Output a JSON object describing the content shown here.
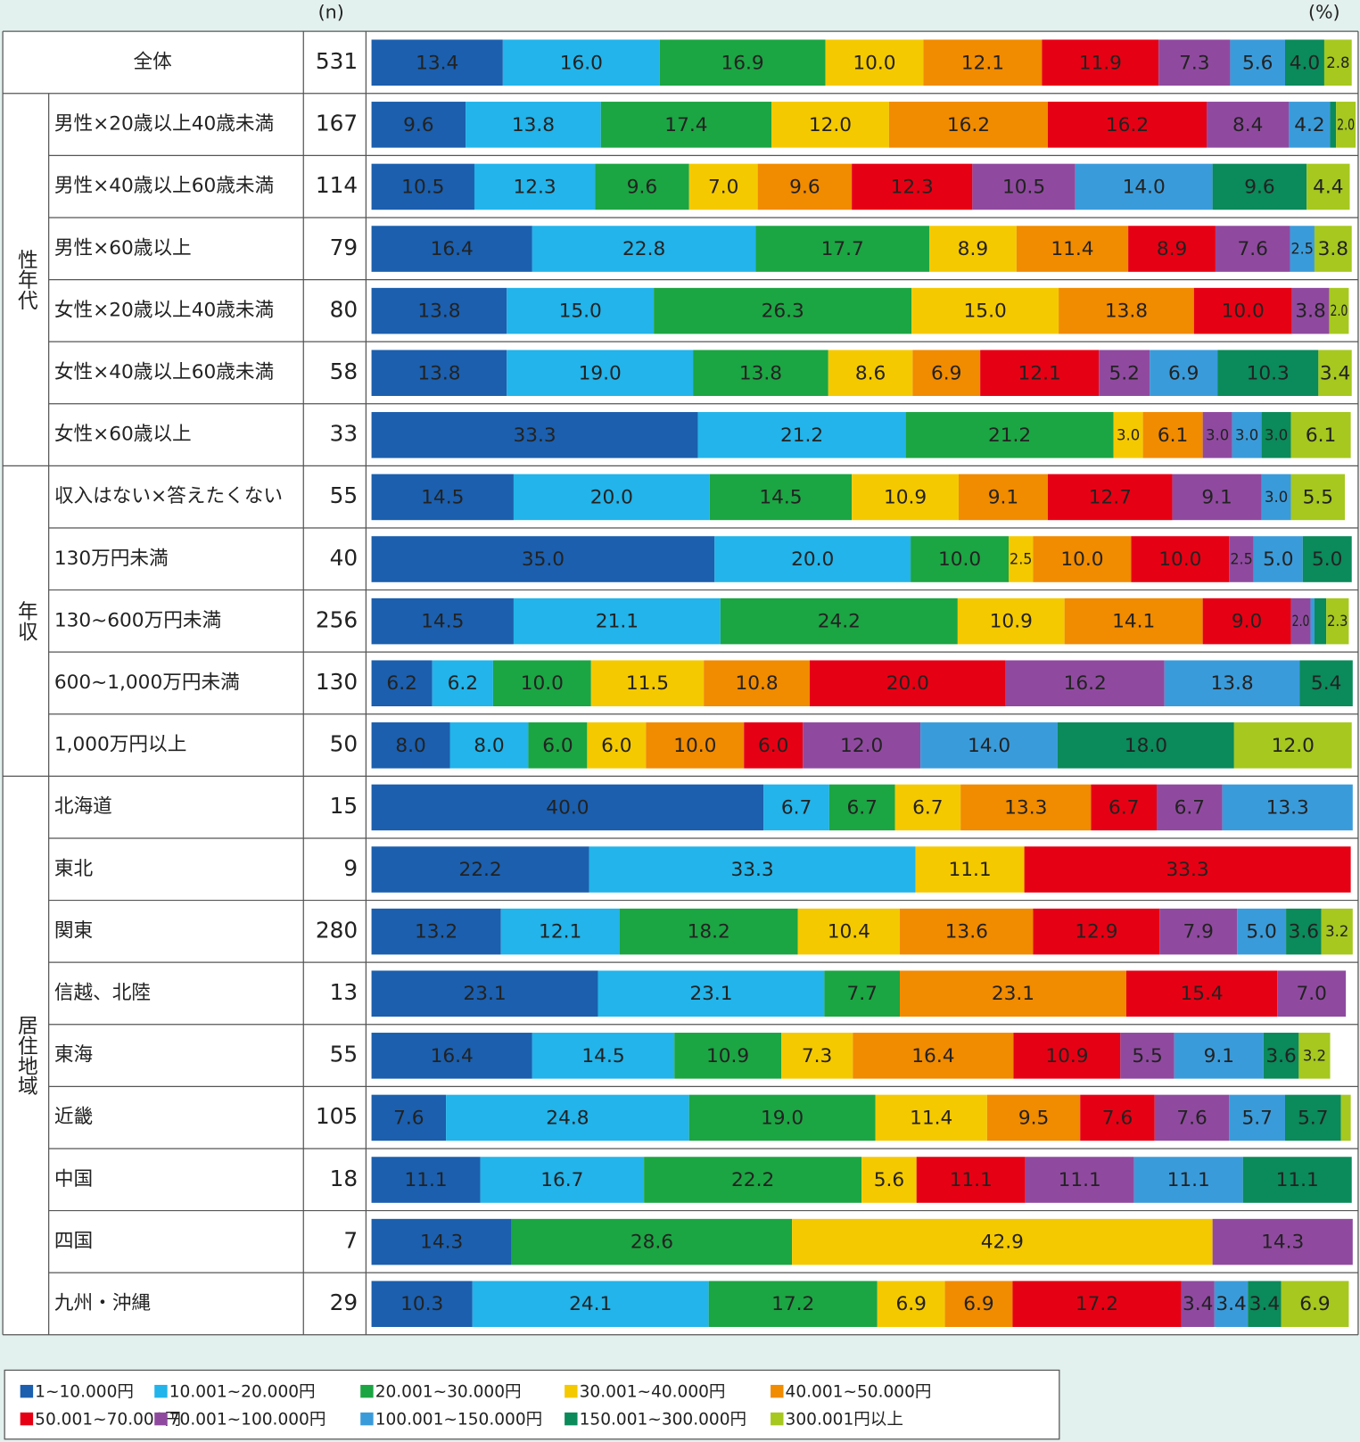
{
  "chart_data": {
    "type": "bar",
    "stacked": true,
    "orientation": "horizontal",
    "n_label": "(n)",
    "unit_label": "(%)",
    "xlim": [
      0,
      100
    ],
    "categories": [
      "全体",
      "男性×20歳以上40歳未満",
      "男性×40歳以上60歳未満",
      "男性×60歳以上",
      "女性×20歳以上40歳未満",
      "女性×40歳以上60歳未満",
      "女性×60歳以上",
      "収入はない×答えたくない",
      "130万円未満",
      "130~600万円未満",
      "600~1,000万円未満",
      "1,000万円以上",
      "北海道",
      "東北",
      "関東",
      "信越、北陸",
      "東海",
      "近畿",
      "中国",
      "四国",
      "九州・沖縄"
    ],
    "group": [
      null,
      "性年代",
      "性年代",
      "性年代",
      "性年代",
      "性年代",
      "性年代",
      "年収",
      "年収",
      "年収",
      "年収",
      "年収",
      "居住地域",
      "居住地域",
      "居住地域",
      "居住地域",
      "居住地域",
      "居住地域",
      "居住地域",
      "居住地域",
      "居住地域"
    ],
    "n": [
      531,
      167,
      114,
      79,
      80,
      58,
      33,
      55,
      40,
      256,
      130,
      50,
      15,
      9,
      280,
      13,
      55,
      105,
      18,
      7,
      29
    ],
    "series": [
      {
        "name": "1~10.000円",
        "color": "#1b5fae",
        "label_color": "#ffffff",
        "values": [
          13.4,
          9.6,
          10.5,
          16.4,
          13.8,
          13.8,
          33.3,
          14.5,
          35.0,
          14.5,
          6.2,
          8.0,
          40.0,
          22.2,
          13.2,
          23.1,
          16.4,
          7.6,
          11.1,
          14.3,
          10.3
        ],
        "value_labels": [
          "13.4",
          "9.6",
          "10.5",
          "16.4",
          "13.8",
          "13.8",
          "33.3",
          "14.5",
          "35.0",
          "14.5",
          "6.2",
          "8.0",
          "40.0",
          "22.2",
          "13.2",
          "23.1",
          "16.4",
          "7.6",
          "11.1",
          "14.3",
          "10.3"
        ]
      },
      {
        "name": "10.001~20.000円",
        "color": "#22b4ea",
        "label_color": "#ffffff",
        "values": [
          16.0,
          13.8,
          12.3,
          22.8,
          15.0,
          19.0,
          21.2,
          20.0,
          20.0,
          21.1,
          6.2,
          8.0,
          6.7,
          33.3,
          12.1,
          23.1,
          14.5,
          24.8,
          16.7,
          0,
          24.1
        ],
        "value_labels": [
          "16.0",
          "13.8",
          "12.3",
          "22.8",
          "15.0",
          "19.0",
          "21.2",
          "20.0",
          "20.0",
          "21.1",
          "6.2",
          "8.0",
          "6.7",
          "33.3",
          "12.1",
          "23.1",
          "14.5",
          "24.8",
          "16.7",
          null,
          "24.1"
        ]
      },
      {
        "name": "20.001~30.000円",
        "color": "#1ca543",
        "label_color": "#ffffff",
        "values": [
          16.9,
          17.4,
          9.6,
          17.7,
          26.3,
          13.8,
          21.2,
          14.5,
          10.0,
          24.2,
          10.0,
          6.0,
          6.7,
          0,
          18.2,
          7.7,
          10.9,
          19.0,
          22.2,
          28.6,
          17.2
        ],
        "value_labels": [
          "16.9",
          "17.4",
          "9.6",
          "17.7",
          "26.3",
          "13.8",
          "21.2",
          "14.5",
          "10.0",
          "24.2",
          "10.0",
          "6.0",
          "6.7",
          null,
          "18.2",
          "7.7",
          "10.9",
          "19.0",
          "22.2",
          "28.6",
          "17.2"
        ]
      },
      {
        "name": "30.001~40.000円",
        "color": "#f5c900",
        "label_color": "#222222",
        "values": [
          10.0,
          12.0,
          7.0,
          8.9,
          15.0,
          8.6,
          3.0,
          10.9,
          2.5,
          10.9,
          11.5,
          6.0,
          6.7,
          11.1,
          10.4,
          0,
          7.3,
          11.4,
          5.6,
          42.9,
          6.9
        ],
        "value_labels": [
          "10.0",
          "12.0",
          "7.0",
          "8.9",
          "15.0",
          "8.6",
          "3.0",
          "10.9",
          "2.5",
          "10.9",
          "11.5",
          "6.0",
          "6.7",
          "11.1",
          "10.4",
          null,
          "7.3",
          "11.4",
          "5.6",
          "42.9",
          "6.9"
        ]
      },
      {
        "name": "40.001~50.000円",
        "color": "#f18b00",
        "label_color": "#ffffff",
        "values": [
          12.1,
          16.2,
          9.6,
          11.4,
          13.8,
          6.9,
          6.1,
          9.1,
          10.0,
          14.1,
          10.8,
          10.0,
          13.3,
          0,
          13.6,
          23.1,
          16.4,
          9.5,
          0,
          0,
          6.9
        ],
        "value_labels": [
          "12.1",
          "16.2",
          "9.6",
          "11.4",
          "13.8",
          "6.9",
          "6.1",
          "9.1",
          "10.0",
          "14.1",
          "10.8",
          "10.0",
          "13.3",
          null,
          "13.6",
          "23.1",
          "16.4",
          "9.5",
          null,
          null,
          "6.9"
        ]
      },
      {
        "name": "50.001~70.000円",
        "color": "#e60013",
        "label_color": "#ffffff",
        "values": [
          11.9,
          16.2,
          12.3,
          8.9,
          10.0,
          12.1,
          0,
          12.7,
          10.0,
          9.0,
          20.0,
          6.0,
          6.7,
          33.3,
          12.9,
          15.4,
          10.9,
          7.6,
          11.1,
          0,
          17.2
        ],
        "value_labels": [
          "11.9",
          "16.2",
          "12.3",
          "8.9",
          "10.0",
          "12.1",
          null,
          "12.7",
          "10.0",
          "9.0",
          "20.0",
          "6.0",
          "6.7",
          "33.3",
          "12.9",
          "15.4",
          "10.9",
          "7.6",
          "11.1",
          null,
          "17.2"
        ]
      },
      {
        "name": "70.001~100.000円",
        "color": "#8f4a9f",
        "label_color": "#ffffff",
        "values": [
          7.3,
          8.4,
          10.5,
          7.6,
          3.8,
          5.2,
          3.0,
          9.1,
          2.5,
          2.0,
          16.2,
          12.0,
          6.7,
          0,
          7.9,
          7.0,
          5.5,
          7.6,
          11.1,
          14.3,
          3.4
        ],
        "value_labels": [
          "7.3",
          "8.4",
          "10.5",
          "7.6",
          "3.8",
          "5.2",
          "3.0",
          "9.1",
          "2.5",
          "2.0",
          "16.2",
          "12.0",
          "6.7",
          null,
          "7.9",
          "7.0",
          "5.5",
          "7.6",
          "11.1",
          "14.3",
          "3.4"
        ]
      },
      {
        "name": "100.001~150.000円",
        "color": "#3a9bda",
        "label_color": "#ffffff",
        "values": [
          5.6,
          4.2,
          14.0,
          2.5,
          0,
          6.9,
          3.0,
          3.0,
          5.0,
          0.4,
          13.8,
          14.0,
          13.3,
          0,
          5.0,
          0,
          9.1,
          5.7,
          11.1,
          0,
          3.4
        ],
        "value_labels": [
          "5.6",
          "4.2",
          "14.0",
          "2.5",
          null,
          "6.9",
          "3.0",
          "3.0",
          "5.0",
          null,
          "13.8",
          "14.0",
          "13.3",
          null,
          "5.0",
          null,
          "9.1",
          "5.7",
          "11.1",
          null,
          "3.4"
        ]
      },
      {
        "name": "150.001~300.000円",
        "color": "#0b8a5b",
        "label_color": "#ffffff",
        "values": [
          4.0,
          0.6,
          9.6,
          0,
          0,
          10.3,
          3.0,
          0,
          5.0,
          1.2,
          5.4,
          18.0,
          0,
          0,
          3.6,
          0,
          3.6,
          5.7,
          11.1,
          0,
          3.4
        ],
        "value_labels": [
          "4.0",
          null,
          "9.6",
          null,
          null,
          "10.3",
          "3.0",
          null,
          "5.0",
          null,
          "5.4",
          "18.0",
          null,
          null,
          "3.6",
          null,
          "3.6",
          "5.7",
          "11.1",
          null,
          "3.4"
        ]
      },
      {
        "name": "300.001円以上",
        "color": "#a6c81f",
        "label_color": "#ffffff",
        "values": [
          2.8,
          2.0,
          4.4,
          3.8,
          2.0,
          3.4,
          6.1,
          5.5,
          0,
          2.3,
          0,
          12.0,
          0,
          0,
          3.2,
          0,
          3.2,
          1.0,
          0,
          0,
          6.9
        ],
        "value_labels": [
          "2.8",
          "2.0",
          "4.4",
          "3.8",
          "2.0",
          "3.4",
          "6.1",
          "5.5",
          null,
          "2.3",
          null,
          "12.0",
          null,
          null,
          "3.2",
          null,
          "3.2",
          null,
          null,
          null,
          "6.9"
        ]
      }
    ]
  }
}
